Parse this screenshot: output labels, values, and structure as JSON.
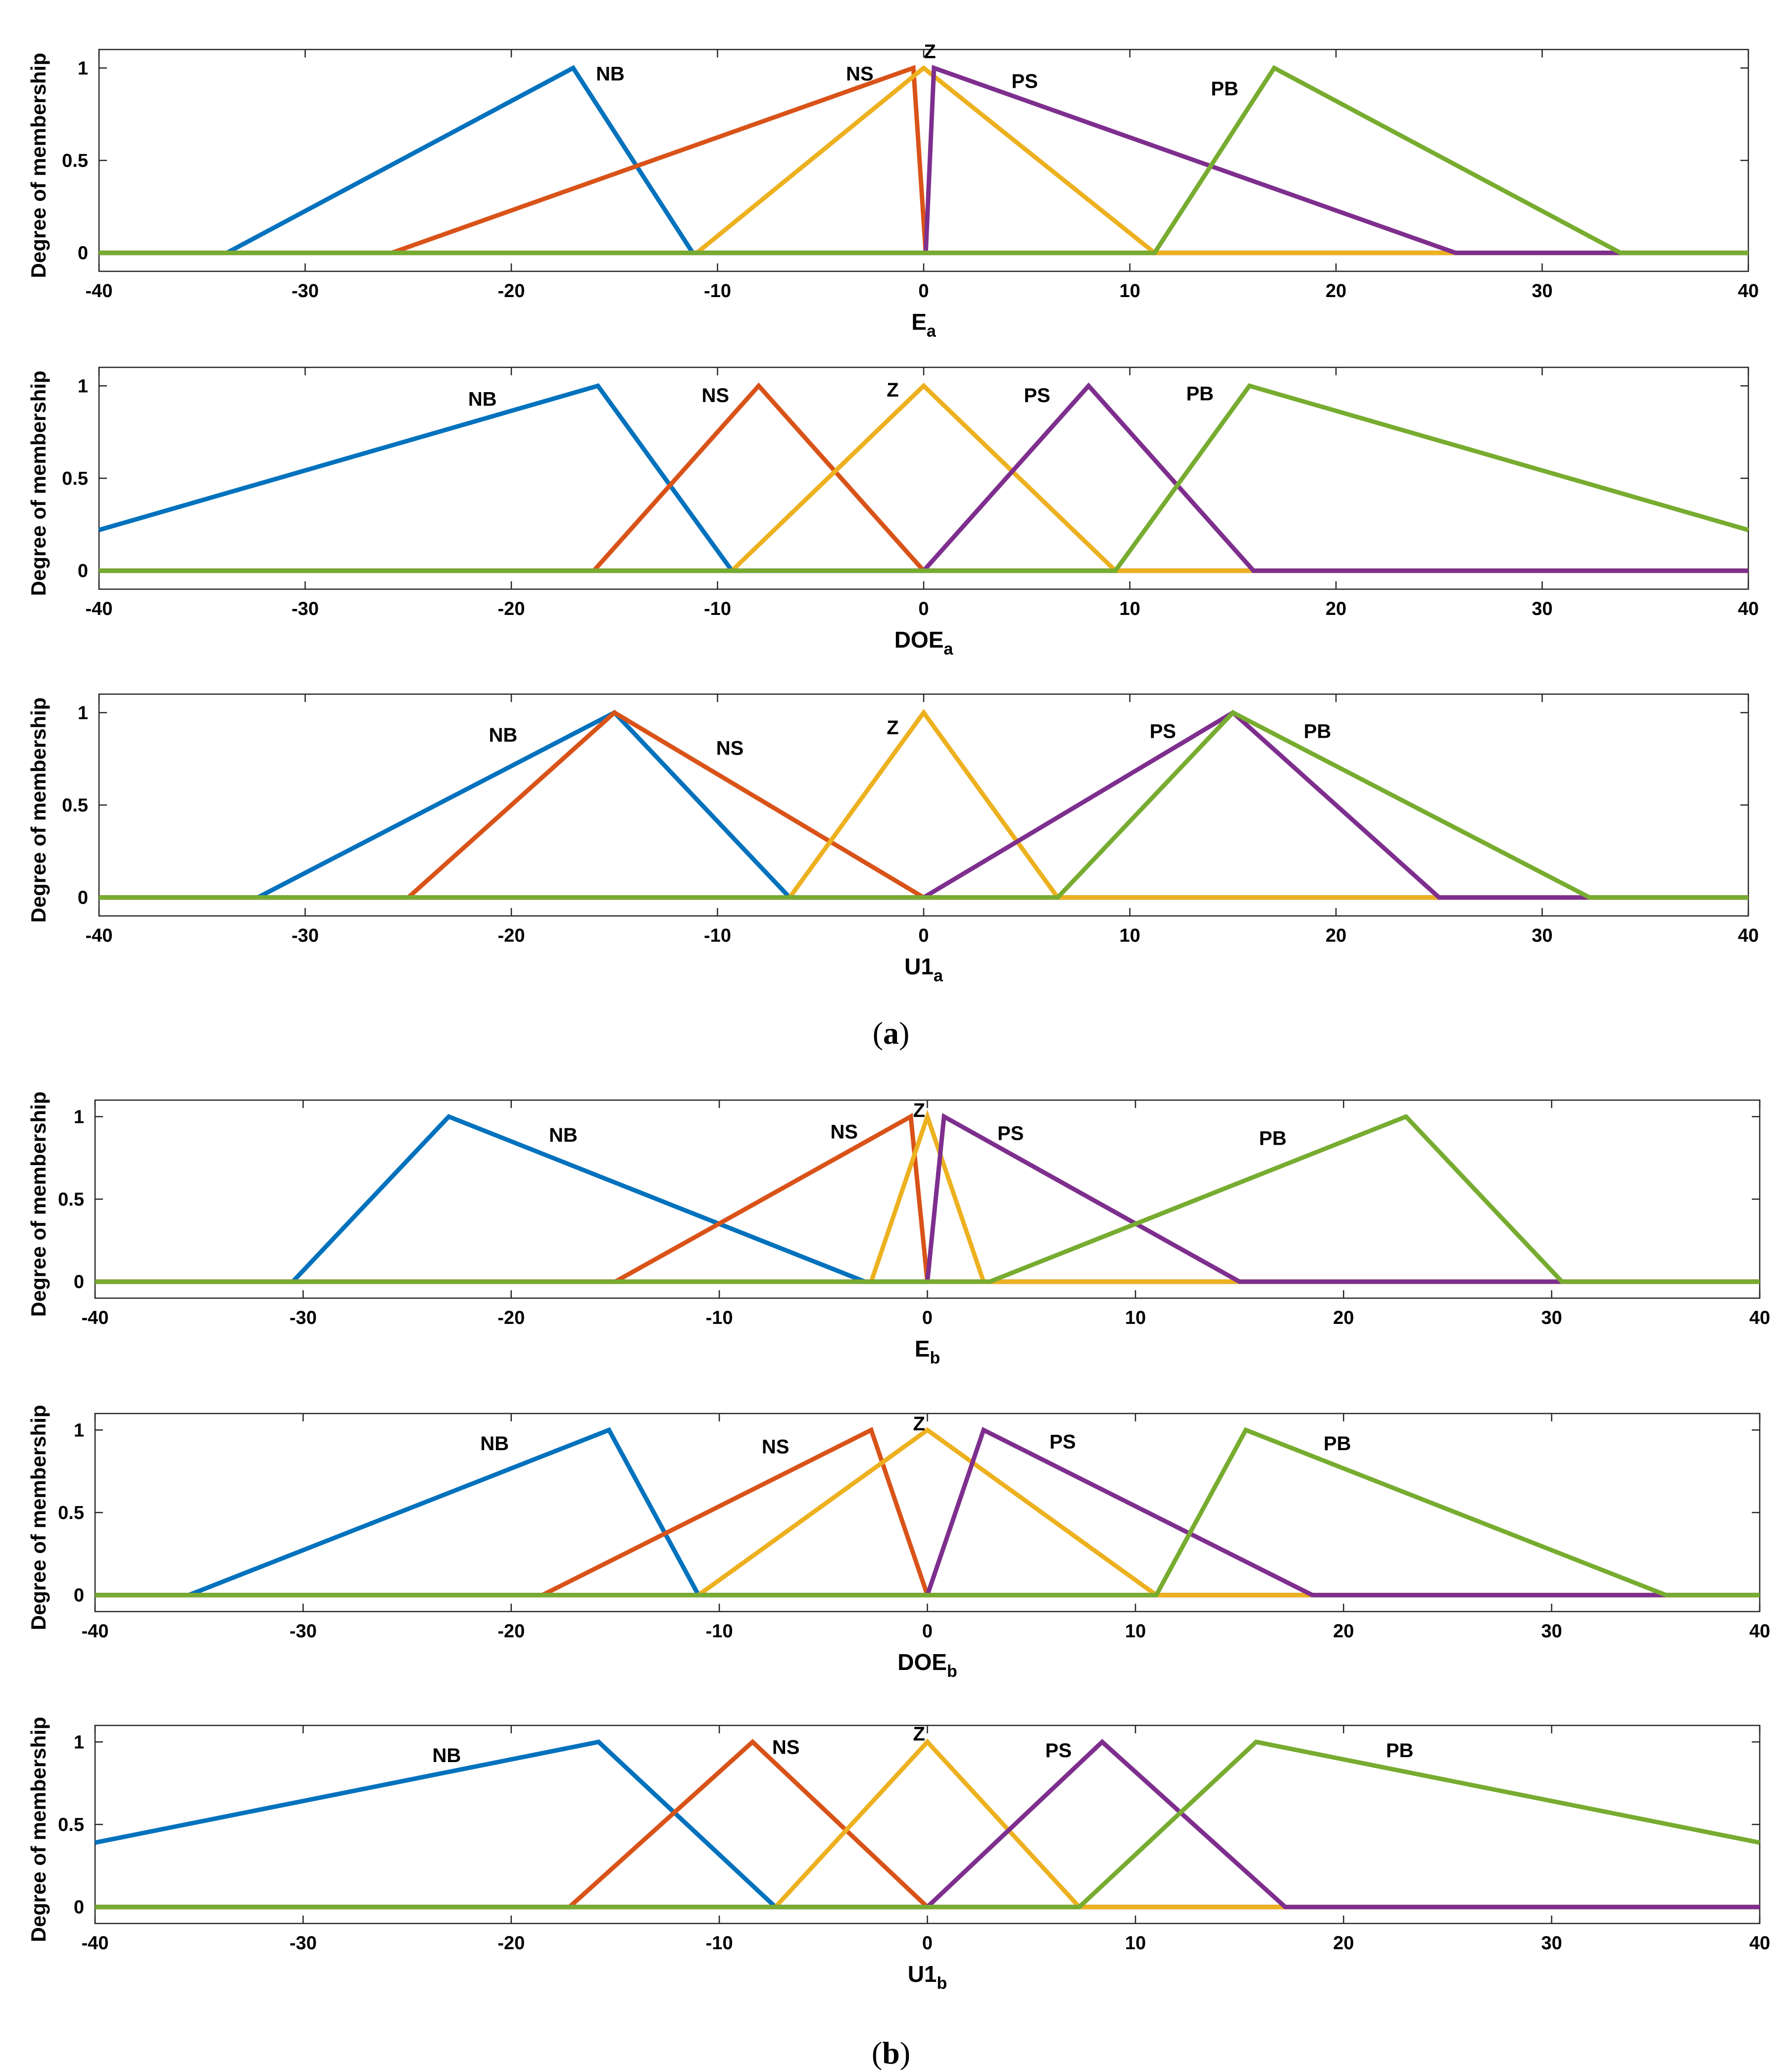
{
  "colors": {
    "NB": "#0072BD",
    "NS": "#D95319",
    "Z": "#EDB120",
    "PS": "#7E2F8E",
    "PB": "#77AC30"
  },
  "captions": {
    "a": "a",
    "b": "b"
  },
  "chart_data": [
    {
      "type": "line",
      "group": "a",
      "xlabel": "E",
      "xlabel_sub": "a",
      "ylabel": "Degree of membership",
      "xlim": [
        -40,
        40
      ],
      "ylim": [
        -0.1,
        1.1
      ],
      "xticks": [
        "-40",
        "-30",
        "-20",
        "-10",
        "0",
        "10",
        "20",
        "30",
        "40"
      ],
      "yticks": [
        "0",
        "0.5",
        "1"
      ],
      "series": [
        {
          "name": "NB",
          "points": [
            [
              -40,
              0
            ],
            [
              -33.8,
              0
            ],
            [
              -17,
              1
            ],
            [
              -11.2,
              0
            ],
            [
              40,
              0
            ]
          ]
        },
        {
          "name": "NS",
          "points": [
            [
              -40,
              0
            ],
            [
              -25.8,
              0
            ],
            [
              -0.5,
              1
            ],
            [
              0.1,
              0
            ],
            [
              40,
              0
            ]
          ]
        },
        {
          "name": "Z",
          "points": [
            [
              -40,
              0
            ],
            [
              -11,
              0
            ],
            [
              0,
              1
            ],
            [
              11.2,
              0
            ],
            [
              40,
              0
            ]
          ]
        },
        {
          "name": "PS",
          "points": [
            [
              -40,
              0
            ],
            [
              0.1,
              0
            ],
            [
              0.5,
              1
            ],
            [
              25.8,
              0
            ],
            [
              40,
              0
            ]
          ]
        },
        {
          "name": "PB",
          "points": [
            [
              -40,
              0
            ],
            [
              11.2,
              0
            ],
            [
              17,
              1
            ],
            [
              33.8,
              0
            ],
            [
              40,
              0
            ]
          ]
        }
      ],
      "annotations": [
        {
          "text": "NB",
          "x": -15.2,
          "y": 0.97
        },
        {
          "text": "NS",
          "x": -3.1,
          "y": 0.97
        },
        {
          "text": "Z",
          "x": 0.3,
          "y": 1.09
        },
        {
          "text": "PS",
          "x": 4.9,
          "y": 0.93
        },
        {
          "text": "PB",
          "x": 14.6,
          "y": 0.89
        }
      ]
    },
    {
      "type": "line",
      "group": "a",
      "xlabel": "DOE",
      "xlabel_sub": "a",
      "ylabel": "Degree of membership",
      "xlim": [
        -40,
        40
      ],
      "ylim": [
        -0.1,
        1.1
      ],
      "xticks": [
        "-40",
        "-30",
        "-20",
        "-10",
        "0",
        "10",
        "20",
        "30",
        "40"
      ],
      "yticks": [
        "0",
        "0.5",
        "1"
      ],
      "series": [
        {
          "name": "NB",
          "points": [
            [
              -40,
              0.22
            ],
            [
              -15.8,
              1
            ],
            [
              -9.3,
              0
            ],
            [
              40,
              0
            ]
          ]
        },
        {
          "name": "NS",
          "points": [
            [
              -40,
              0
            ],
            [
              -16,
              0
            ],
            [
              -8,
              1
            ],
            [
              0,
              0
            ],
            [
              40,
              0
            ]
          ]
        },
        {
          "name": "Z",
          "points": [
            [
              -40,
              0
            ],
            [
              -9.3,
              0
            ],
            [
              0,
              1
            ],
            [
              9.3,
              0
            ],
            [
              40,
              0
            ]
          ]
        },
        {
          "name": "PS",
          "points": [
            [
              -40,
              0
            ],
            [
              0,
              0
            ],
            [
              8,
              1
            ],
            [
              16,
              0
            ],
            [
              40,
              0
            ]
          ]
        },
        {
          "name": "PB",
          "points": [
            [
              -40,
              0
            ],
            [
              9.3,
              0
            ],
            [
              15.8,
              1
            ],
            [
              40,
              0.22
            ]
          ]
        }
      ],
      "annotations": [
        {
          "text": "NB",
          "x": -21.4,
          "y": 0.93
        },
        {
          "text": "NS",
          "x": -10.1,
          "y": 0.95
        },
        {
          "text": "Z",
          "x": -1.5,
          "y": 0.98
        },
        {
          "text": "PS",
          "x": 5.5,
          "y": 0.95
        },
        {
          "text": "PB",
          "x": 13.4,
          "y": 0.96
        }
      ]
    },
    {
      "type": "line",
      "group": "a",
      "xlabel": "U1",
      "xlabel_sub": "a",
      "ylabel": "Degree of membership",
      "xlim": [
        -40,
        40
      ],
      "ylim": [
        -0.1,
        1.1
      ],
      "xticks": [
        "-40",
        "-30",
        "-20",
        "-10",
        "0",
        "10",
        "20",
        "30",
        "40"
      ],
      "yticks": [
        "0",
        "0.5",
        "1"
      ],
      "series": [
        {
          "name": "NB",
          "points": [
            [
              -40,
              0
            ],
            [
              -32.3,
              0
            ],
            [
              -15,
              1
            ],
            [
              -6.5,
              0
            ],
            [
              40,
              0
            ]
          ]
        },
        {
          "name": "NS",
          "points": [
            [
              -40,
              0
            ],
            [
              -25,
              0
            ],
            [
              -15,
              1
            ],
            [
              0,
              0
            ],
            [
              40,
              0
            ]
          ]
        },
        {
          "name": "Z",
          "points": [
            [
              -40,
              0
            ],
            [
              -6.5,
              0
            ],
            [
              0,
              1
            ],
            [
              6.5,
              0
            ],
            [
              40,
              0
            ]
          ]
        },
        {
          "name": "PS",
          "points": [
            [
              -40,
              0
            ],
            [
              0,
              0
            ],
            [
              15,
              1
            ],
            [
              25,
              0
            ],
            [
              40,
              0
            ]
          ]
        },
        {
          "name": "PB",
          "points": [
            [
              -40,
              0
            ],
            [
              6.5,
              0
            ],
            [
              15,
              1
            ],
            [
              32.3,
              0
            ],
            [
              40,
              0
            ]
          ]
        }
      ],
      "annotations": [
        {
          "text": "NB",
          "x": -20.4,
          "y": 0.88
        },
        {
          "text": "NS",
          "x": -9.4,
          "y": 0.81
        },
        {
          "text": "Z",
          "x": -1.5,
          "y": 0.92
        },
        {
          "text": "PS",
          "x": 11.6,
          "y": 0.9
        },
        {
          "text": "PB",
          "x": 19.1,
          "y": 0.9
        }
      ]
    },
    {
      "type": "line",
      "group": "b",
      "xlabel": "E",
      "xlabel_sub": "b",
      "ylabel": "Degree of membership",
      "xlim": [
        -40,
        40
      ],
      "ylim": [
        -0.1,
        1.1
      ],
      "xticks": [
        "-40",
        "-30",
        "-20",
        "-10",
        "0",
        "10",
        "20",
        "30",
        "40"
      ],
      "yticks": [
        "0",
        "0.5",
        "1"
      ],
      "series": [
        {
          "name": "NB",
          "points": [
            [
              -40,
              0
            ],
            [
              -30.5,
              0
            ],
            [
              -23,
              1
            ],
            [
              -3,
              0
            ],
            [
              40,
              0
            ]
          ]
        },
        {
          "name": "NS",
          "points": [
            [
              -40,
              0
            ],
            [
              -15,
              0
            ],
            [
              -0.8,
              1
            ],
            [
              0,
              0
            ],
            [
              40,
              0
            ]
          ]
        },
        {
          "name": "Z",
          "points": [
            [
              -40,
              0
            ],
            [
              -2.7,
              0
            ],
            [
              0,
              1
            ],
            [
              2.7,
              0
            ],
            [
              40,
              0
            ]
          ]
        },
        {
          "name": "PS",
          "points": [
            [
              -40,
              0
            ],
            [
              0,
              0
            ],
            [
              0.8,
              1
            ],
            [
              15,
              0
            ],
            [
              40,
              0
            ]
          ]
        },
        {
          "name": "PB",
          "points": [
            [
              -40,
              0
            ],
            [
              3,
              0
            ],
            [
              23,
              1
            ],
            [
              30.5,
              0
            ],
            [
              40,
              0
            ]
          ]
        }
      ],
      "annotations": [
        {
          "text": "NB",
          "x": -17.5,
          "y": 0.89
        },
        {
          "text": "NS",
          "x": -4,
          "y": 0.91
        },
        {
          "text": "Z",
          "x": -0.4,
          "y": 1.04
        },
        {
          "text": "PS",
          "x": 4,
          "y": 0.9
        },
        {
          "text": "PB",
          "x": 16.6,
          "y": 0.87
        }
      ]
    },
    {
      "type": "line",
      "group": "b",
      "xlabel": "DOE",
      "xlabel_sub": "b",
      "ylabel": "Degree of membership",
      "xlim": [
        -40,
        40
      ],
      "ylim": [
        -0.1,
        1.1
      ],
      "xticks": [
        "-40",
        "-30",
        "-20",
        "-10",
        "0",
        "10",
        "20",
        "30",
        "40"
      ],
      "yticks": [
        "0",
        "0.5",
        "1"
      ],
      "series": [
        {
          "name": "NB",
          "points": [
            [
              -40,
              0
            ],
            [
              -35.5,
              0
            ],
            [
              -15.3,
              1
            ],
            [
              -11,
              0
            ],
            [
              40,
              0
            ]
          ]
        },
        {
          "name": "NS",
          "points": [
            [
              -40,
              0
            ],
            [
              -18.5,
              0
            ],
            [
              -2.7,
              1
            ],
            [
              0,
              0
            ],
            [
              40,
              0
            ]
          ]
        },
        {
          "name": "Z",
          "points": [
            [
              -40,
              0
            ],
            [
              -11,
              0
            ],
            [
              0,
              1
            ],
            [
              11,
              0
            ],
            [
              40,
              0
            ]
          ]
        },
        {
          "name": "PS",
          "points": [
            [
              -40,
              0
            ],
            [
              0,
              0
            ],
            [
              2.7,
              1
            ],
            [
              18.5,
              0
            ],
            [
              40,
              0
            ]
          ]
        },
        {
          "name": "PB",
          "points": [
            [
              -40,
              0
            ],
            [
              11,
              0
            ],
            [
              15.3,
              1
            ],
            [
              35.5,
              0
            ],
            [
              40,
              0
            ]
          ]
        }
      ],
      "annotations": [
        {
          "text": "NB",
          "x": -20.8,
          "y": 0.92
        },
        {
          "text": "NS",
          "x": -7.3,
          "y": 0.9
        },
        {
          "text": "Z",
          "x": -0.4,
          "y": 1.04
        },
        {
          "text": "PS",
          "x": 6.5,
          "y": 0.93
        },
        {
          "text": "PB",
          "x": 19.7,
          "y": 0.92
        }
      ]
    },
    {
      "type": "line",
      "group": "b",
      "xlabel": "U1",
      "xlabel_sub": "b",
      "ylabel": "Degree of membership",
      "xlim": [
        -40,
        40
      ],
      "ylim": [
        -0.1,
        1.1
      ],
      "xticks": [
        "-40",
        "-30",
        "-20",
        "-10",
        "0",
        "10",
        "20",
        "30",
        "40"
      ],
      "yticks": [
        "0",
        "0.5",
        "1"
      ],
      "series": [
        {
          "name": "NB",
          "points": [
            [
              -40,
              0.39
            ],
            [
              -15.8,
              1
            ],
            [
              -7.3,
              0
            ],
            [
              40,
              0
            ]
          ]
        },
        {
          "name": "NS",
          "points": [
            [
              -40,
              0
            ],
            [
              -17.2,
              0
            ],
            [
              -8.4,
              1
            ],
            [
              0,
              0
            ],
            [
              40,
              0
            ]
          ]
        },
        {
          "name": "Z",
          "points": [
            [
              -40,
              0
            ],
            [
              -7.3,
              0
            ],
            [
              0,
              1
            ],
            [
              7.3,
              0
            ],
            [
              40,
              0
            ]
          ]
        },
        {
          "name": "PS",
          "points": [
            [
              -40,
              0
            ],
            [
              0,
              0
            ],
            [
              8.4,
              1
            ],
            [
              17.2,
              0
            ],
            [
              40,
              0
            ]
          ]
        },
        {
          "name": "PB",
          "points": [
            [
              -40,
              0
            ],
            [
              7.3,
              0
            ],
            [
              15.8,
              1
            ],
            [
              40,
              0.39
            ]
          ]
        }
      ],
      "annotations": [
        {
          "text": "NB",
          "x": -23.1,
          "y": 0.92
        },
        {
          "text": "NS",
          "x": -6.8,
          "y": 0.97
        },
        {
          "text": "Z",
          "x": -0.4,
          "y": 1.05
        },
        {
          "text": "PS",
          "x": 6.3,
          "y": 0.95
        },
        {
          "text": "PB",
          "x": 22.7,
          "y": 0.95
        }
      ]
    }
  ]
}
